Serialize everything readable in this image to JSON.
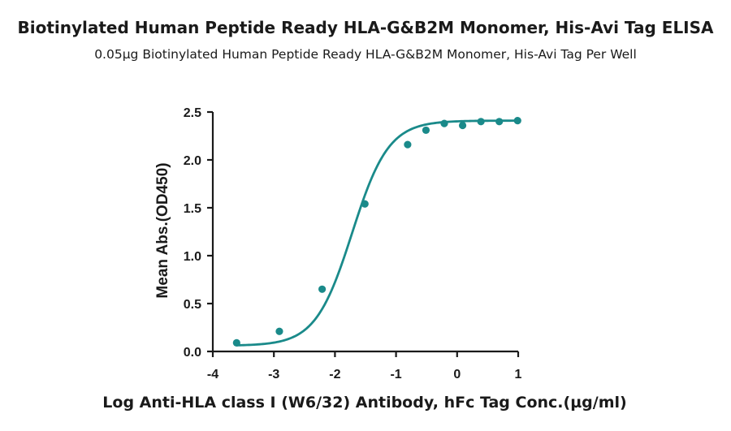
{
  "chart_data": {
    "type": "scatter",
    "title": "Biotinylated Human Peptide Ready HLA-G&B2M Monomer, His-Avi Tag ELISA",
    "subtitle": "0.05µg Biotinylated Human Peptide Ready HLA-G&B2M Monomer, His-Avi Tag Per Well",
    "xlabel": "Log Anti-HLA class I (W6/32) Antibody, hFc Tag Conc.(µg/ml)",
    "ylabel": "Mean Abs.(OD450)",
    "xlim": [
      -4,
      1
    ],
    "ylim": [
      0,
      2.5
    ],
    "x_ticks": [
      -4,
      -3,
      -2,
      -1,
      0,
      1
    ],
    "y_ticks": [
      0.0,
      0.5,
      1.0,
      1.5,
      2.0,
      2.5
    ],
    "x_tick_labels": [
      "-4",
      "-3",
      "-2",
      "-1",
      "0",
      "1"
    ],
    "y_tick_labels": [
      "0.0",
      "0.5",
      "1.0",
      "1.5",
      "2.0",
      "2.5"
    ],
    "grid": false,
    "legend": "none",
    "series": [
      {
        "color": "#1a8a8a",
        "points": [
          {
            "x": -3.61,
            "y": 0.09
          },
          {
            "x": -2.91,
            "y": 0.21
          },
          {
            "x": -2.21,
            "y": 0.65
          },
          {
            "x": -1.51,
            "y": 1.54
          },
          {
            "x": -0.81,
            "y": 2.16
          },
          {
            "x": -0.51,
            "y": 2.31
          },
          {
            "x": -0.21,
            "y": 2.38
          },
          {
            "x": 0.09,
            "y": 2.36
          },
          {
            "x": 0.39,
            "y": 2.4
          },
          {
            "x": 0.69,
            "y": 2.4
          },
          {
            "x": 0.99,
            "y": 2.41
          }
        ],
        "fit": {
          "model": "4PL",
          "bottom": 0.06,
          "top": 2.41,
          "log_ec50": -1.72,
          "hill_slope": 1.45
        }
      }
    ]
  }
}
